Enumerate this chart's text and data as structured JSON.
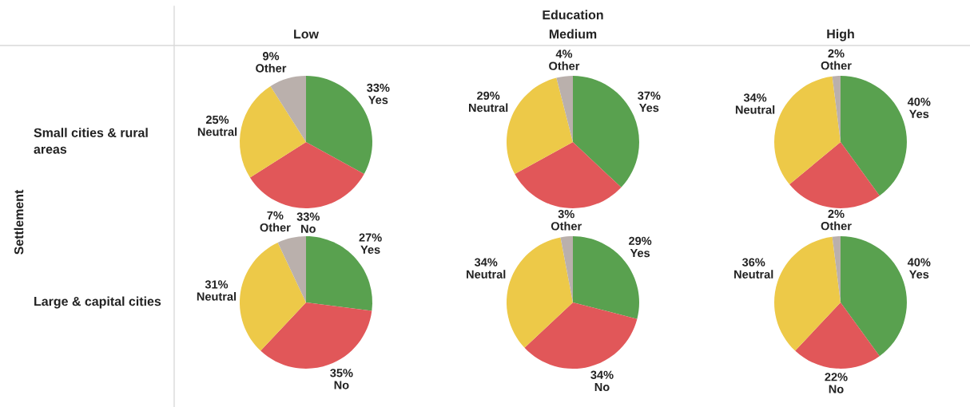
{
  "chart_data": [
    {
      "type": "pie",
      "subtitle": "Low",
      "ylabel": "Small cities & rural areas",
      "annotations": [
        "Settlement"
      ],
      "categories": [
        "Yes",
        "No",
        "Neutral",
        "Other"
      ],
      "values": [
        33,
        33,
        25,
        9
      ],
      "value_labels": [
        "33%",
        "33%",
        "25%",
        "9%"
      ],
      "colors": [
        "#59a14f",
        "#e15759",
        "#edc948",
        "#bab0ac"
      ]
    },
    {
      "type": "pie",
      "title": "Education",
      "subtitle": "Medium",
      "categories": [
        "Yes",
        null,
        "Neutral",
        "Other"
      ],
      "values": [
        37,
        30,
        29,
        4
      ],
      "value_labels": [
        "37%",
        null,
        "29%",
        "4%"
      ],
      "colors": [
        "#59a14f",
        "#e15759",
        "#edc948",
        "#bab0ac"
      ]
    },
    {
      "type": "pie",
      "subtitle": "High",
      "categories": [
        "Yes",
        null,
        "Neutral",
        "Other"
      ],
      "values": [
        40,
        24,
        34,
        2
      ],
      "value_labels": [
        "40%",
        null,
        "34%",
        "2%"
      ],
      "colors": [
        "#59a14f",
        "#e15759",
        "#edc948",
        "#bab0ac"
      ]
    },
    {
      "type": "pie",
      "ylabel": "Large & capital cities",
      "categories": [
        "Yes",
        "No",
        "Neutral",
        "Other"
      ],
      "values": [
        27,
        35,
        31,
        7
      ],
      "value_labels": [
        "27%",
        "35%",
        "31%",
        "7%"
      ],
      "colors": [
        "#59a14f",
        "#e15759",
        "#edc948",
        "#bab0ac"
      ]
    },
    {
      "type": "pie",
      "categories": [
        "Yes",
        "No",
        "Neutral",
        "Other"
      ],
      "values": [
        29,
        34,
        34,
        3
      ],
      "value_labels": [
        "29%",
        "34%",
        "34%",
        "3%"
      ],
      "colors": [
        "#59a14f",
        "#e15759",
        "#edc948",
        "#bab0ac"
      ]
    },
    {
      "type": "pie",
      "categories": [
        "Yes",
        "No",
        "Neutral",
        "Other"
      ],
      "values": [
        40,
        22,
        36,
        2
      ],
      "value_labels": [
        "40%",
        "22%",
        "36%",
        "2%"
      ],
      "colors": [
        "#59a14f",
        "#e15759",
        "#edc948",
        "#bab0ac"
      ]
    }
  ]
}
